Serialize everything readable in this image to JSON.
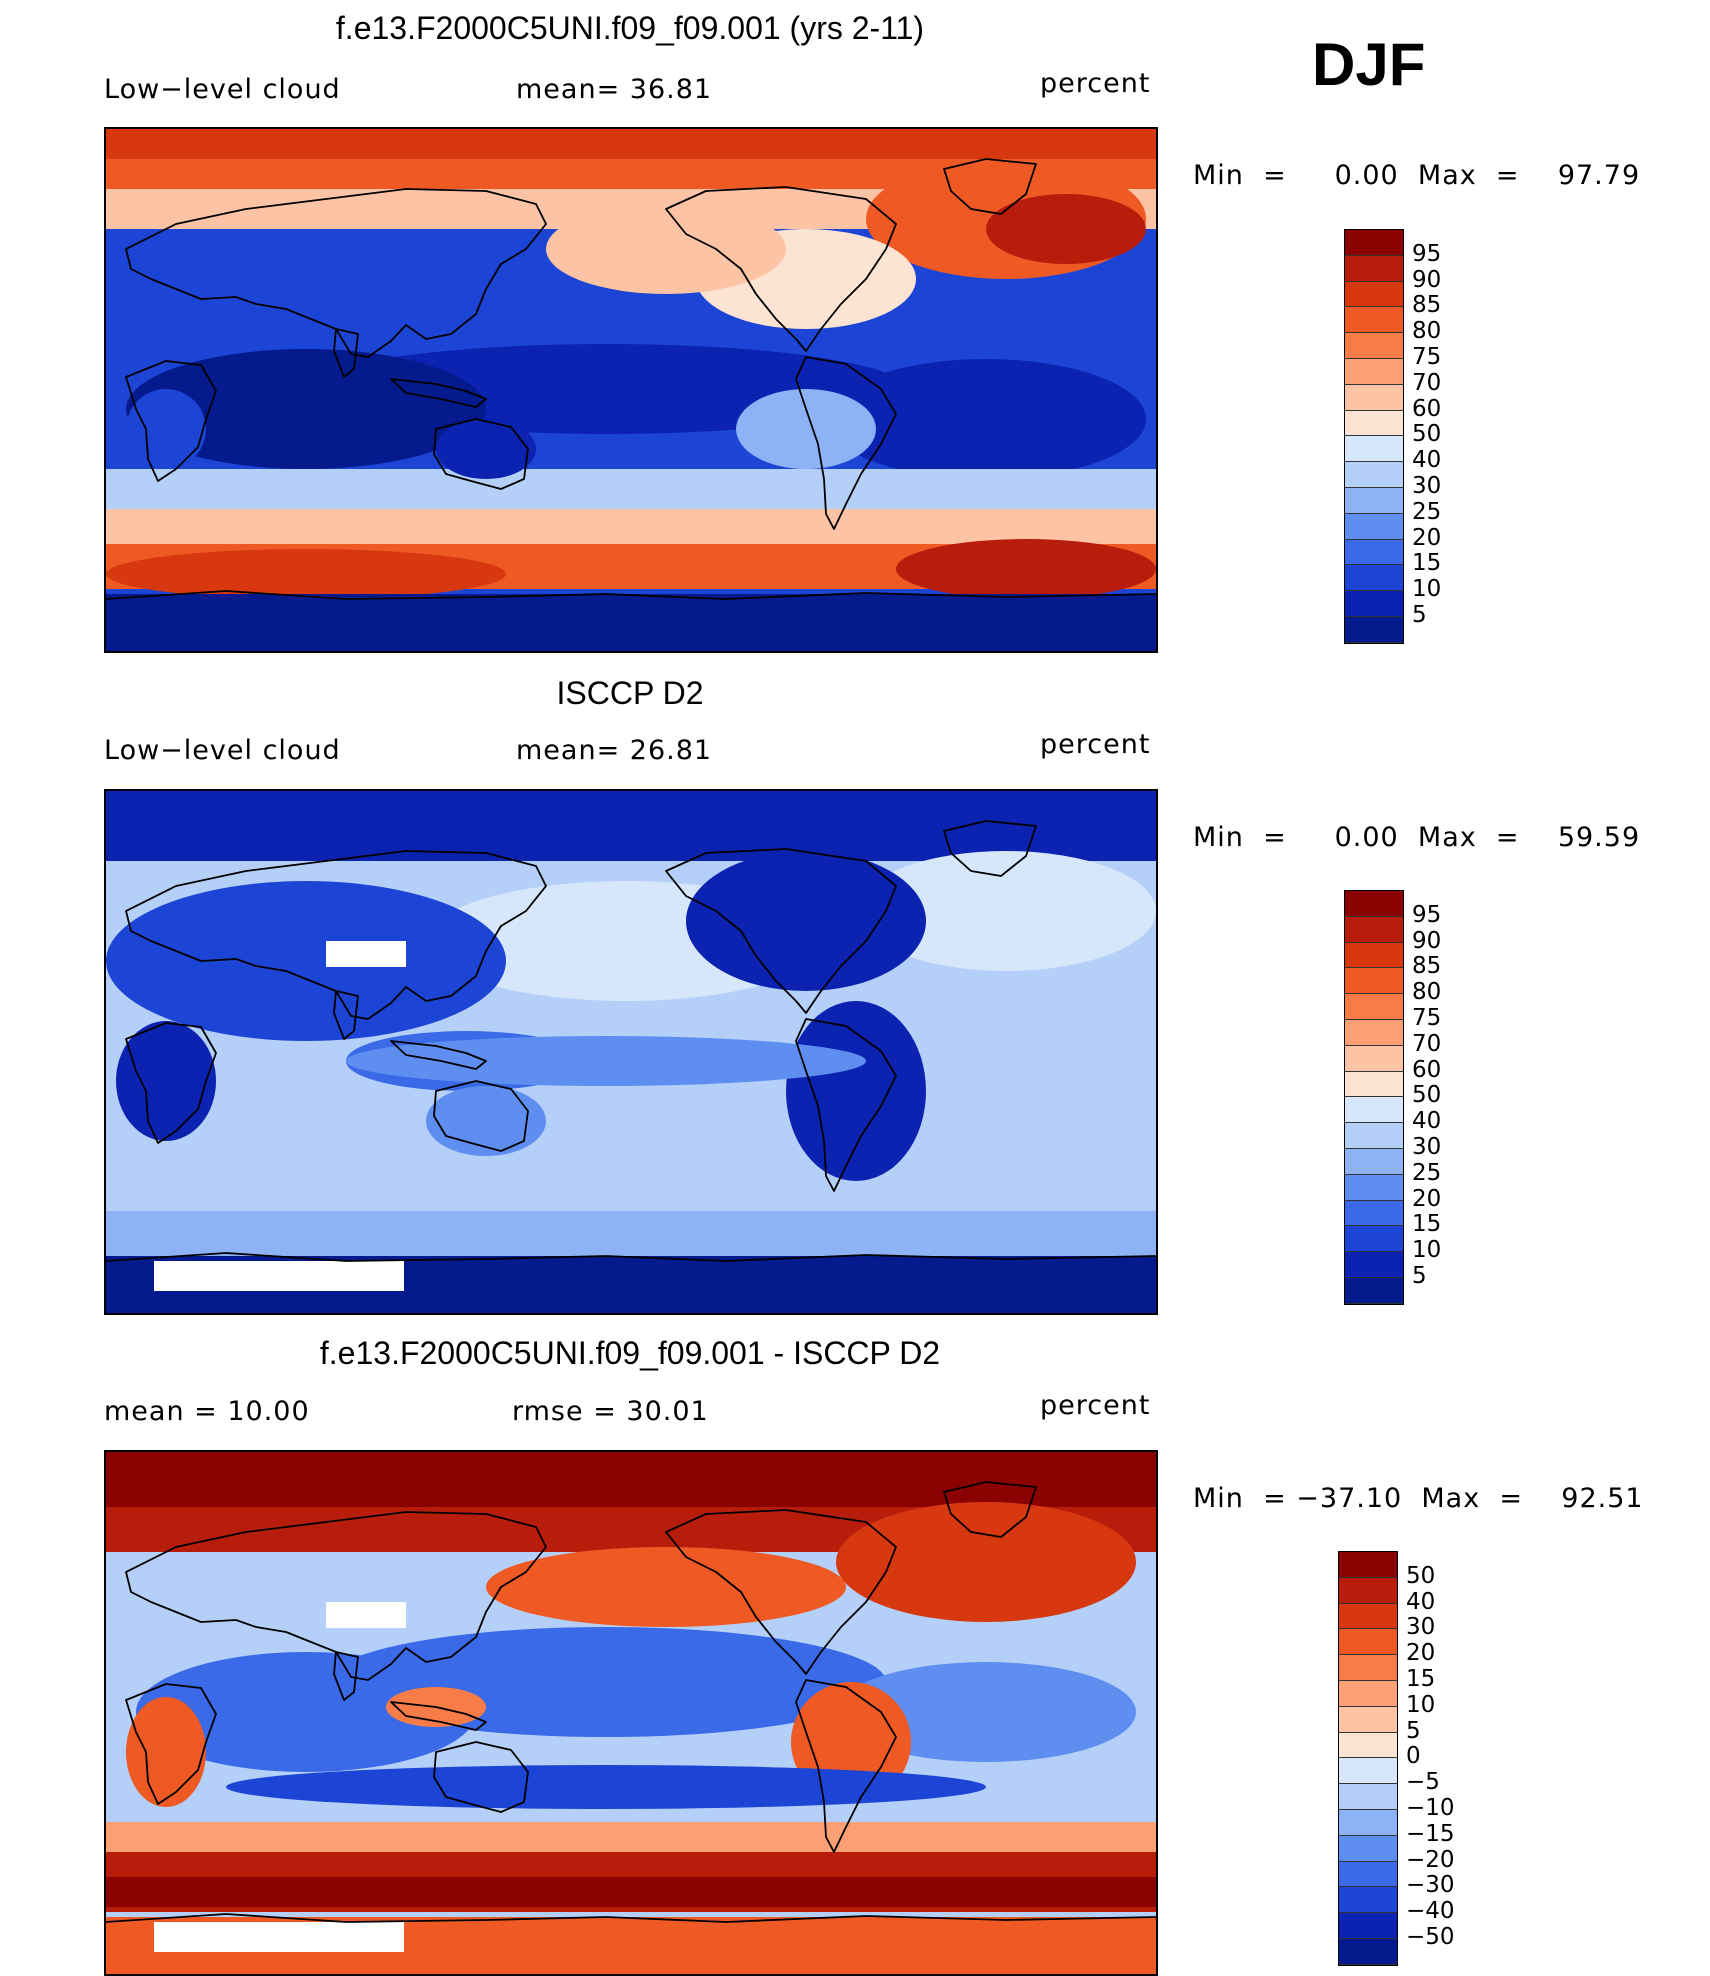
{
  "season": "DJF",
  "panels": [
    {
      "title": "f.e13.F2000C5UNI.f09_f09.001 (yrs 2-11)",
      "left_label": "Low−level cloud",
      "center_label": "mean=   36.81",
      "right_label": "percent",
      "minmax": "Min  =     0.00  Max  =    97.79",
      "scale": "full",
      "map_kind": "model"
    },
    {
      "title": "ISCCP D2",
      "left_label": "Low−level cloud",
      "center_label": "mean=   26.81",
      "right_label": "percent",
      "minmax": "Min  =     0.00  Max  =    59.59",
      "scale": "full",
      "map_kind": "obs"
    },
    {
      "title": "f.e13.F2000C5UNI.f09_f09.001 - ISCCP D2",
      "left_label": "mean  =    10.00",
      "center_label": "rmse  =    30.01",
      "right_label": "percent",
      "minmax": "Min  = −37.10  Max  =    92.51",
      "scale": "diff",
      "map_kind": "diff"
    }
  ],
  "colorbars": {
    "full": {
      "labels": [
        "95",
        "90",
        "85",
        "80",
        "75",
        "70",
        "60",
        "50",
        "40",
        "30",
        "25",
        "20",
        "15",
        "10",
        "5"
      ],
      "colors": [
        "#8b0000",
        "#b81d0c",
        "#d8380f",
        "#ef5a24",
        "#f77c48",
        "#fb9f74",
        "#fdc3a5",
        "#fde4d2",
        "#d6e6fb",
        "#b4cff8",
        "#8db2f5",
        "#5e8ff0",
        "#3a6ae8",
        "#1c45d6",
        "#0b23b0",
        "#051a8c"
      ]
    },
    "diff": {
      "labels": [
        "50",
        "40",
        "30",
        "20",
        "15",
        "10",
        "5",
        "0",
        "−5",
        "−10",
        "−15",
        "−20",
        "−30",
        "−40",
        "−50"
      ],
      "colors": [
        "#8b0000",
        "#b81d0c",
        "#d8380f",
        "#ef5a24",
        "#f77c48",
        "#fb9f74",
        "#fdc3a5",
        "#fde4d2",
        "#d6e6fb",
        "#b4cff8",
        "#8db2f5",
        "#5e8ff0",
        "#3a6ae8",
        "#1c45d6",
        "#0b23b0",
        "#051a8c"
      ]
    }
  }
}
